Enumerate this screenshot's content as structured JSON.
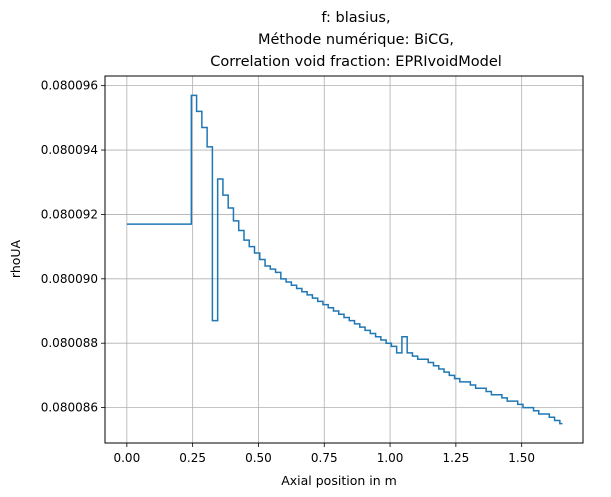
{
  "chart_data": {
    "type": "line",
    "step": "post",
    "title": [
      "f: blasius,",
      "Méthode numérique: BiCG,",
      "Correlation void fraction: EPRIvoidModel"
    ],
    "xlabel": "Axial position in m",
    "ylabel": "rhoUA",
    "xlim": [
      -0.083,
      1.733
    ],
    "ylim": [
      0.0800849,
      0.0800963
    ],
    "xticks": [
      0.0,
      0.25,
      0.5,
      0.75,
      1.0,
      1.25,
      1.5
    ],
    "xtick_labels": [
      "0.00",
      "0.25",
      "0.50",
      "0.75",
      "1.00",
      "1.25",
      "1.50"
    ],
    "yticks": [
      0.080086,
      0.080088,
      0.08009,
      0.080092,
      0.080094,
      0.080096
    ],
    "ytick_labels": [
      "0.080086",
      "0.080088",
      "0.080090",
      "0.080092",
      "0.080094",
      "0.080096"
    ],
    "grid": true,
    "line_color": "#1f77b4",
    "x": [
      0.0,
      0.245,
      0.265,
      0.285,
      0.305,
      0.325,
      0.345,
      0.365,
      0.385,
      0.405,
      0.425,
      0.445,
      0.465,
      0.485,
      0.505,
      0.525,
      0.545,
      0.565,
      0.585,
      0.605,
      0.625,
      0.645,
      0.665,
      0.685,
      0.705,
      0.725,
      0.745,
      0.765,
      0.785,
      0.805,
      0.825,
      0.845,
      0.865,
      0.885,
      0.905,
      0.925,
      0.945,
      0.965,
      0.985,
      1.005,
      1.025,
      1.045,
      1.065,
      1.085,
      1.105,
      1.125,
      1.145,
      1.165,
      1.185,
      1.205,
      1.225,
      1.245,
      1.265,
      1.285,
      1.305,
      1.325,
      1.345,
      1.365,
      1.385,
      1.405,
      1.425,
      1.445,
      1.465,
      1.485,
      1.505,
      1.525,
      1.545,
      1.565,
      1.585,
      1.605,
      1.625,
      1.645
    ],
    "y": [
      0.0800917,
      0.0800957,
      0.0800952,
      0.0800947,
      0.0800941,
      0.0800887,
      0.0800931,
      0.0800926,
      0.0800922,
      0.0800918,
      0.0800915,
      0.0800912,
      0.080091,
      0.0800908,
      0.0800906,
      0.0800904,
      0.0800903,
      0.0800902,
      0.08009,
      0.0800899,
      0.0800898,
      0.0800897,
      0.0800896,
      0.0800895,
      0.0800894,
      0.0800893,
      0.0800892,
      0.0800891,
      0.080089,
      0.0800889,
      0.0800888,
      0.0800887,
      0.0800886,
      0.0800885,
      0.0800884,
      0.0800883,
      0.0800882,
      0.0800881,
      0.080088,
      0.0800879,
      0.0800877,
      0.0800882,
      0.0800877,
      0.0800876,
      0.0800875,
      0.0800875,
      0.0800874,
      0.0800873,
      0.0800872,
      0.0800871,
      0.080087,
      0.0800869,
      0.0800868,
      0.0800868,
      0.0800867,
      0.0800866,
      0.0800866,
      0.0800865,
      0.0800864,
      0.0800864,
      0.0800863,
      0.0800862,
      0.0800862,
      0.0800861,
      0.080086,
      0.080086,
      0.0800859,
      0.0800858,
      0.0800858,
      0.0800857,
      0.0800856,
      0.0800855
    ],
    "x_end": 1.655
  }
}
